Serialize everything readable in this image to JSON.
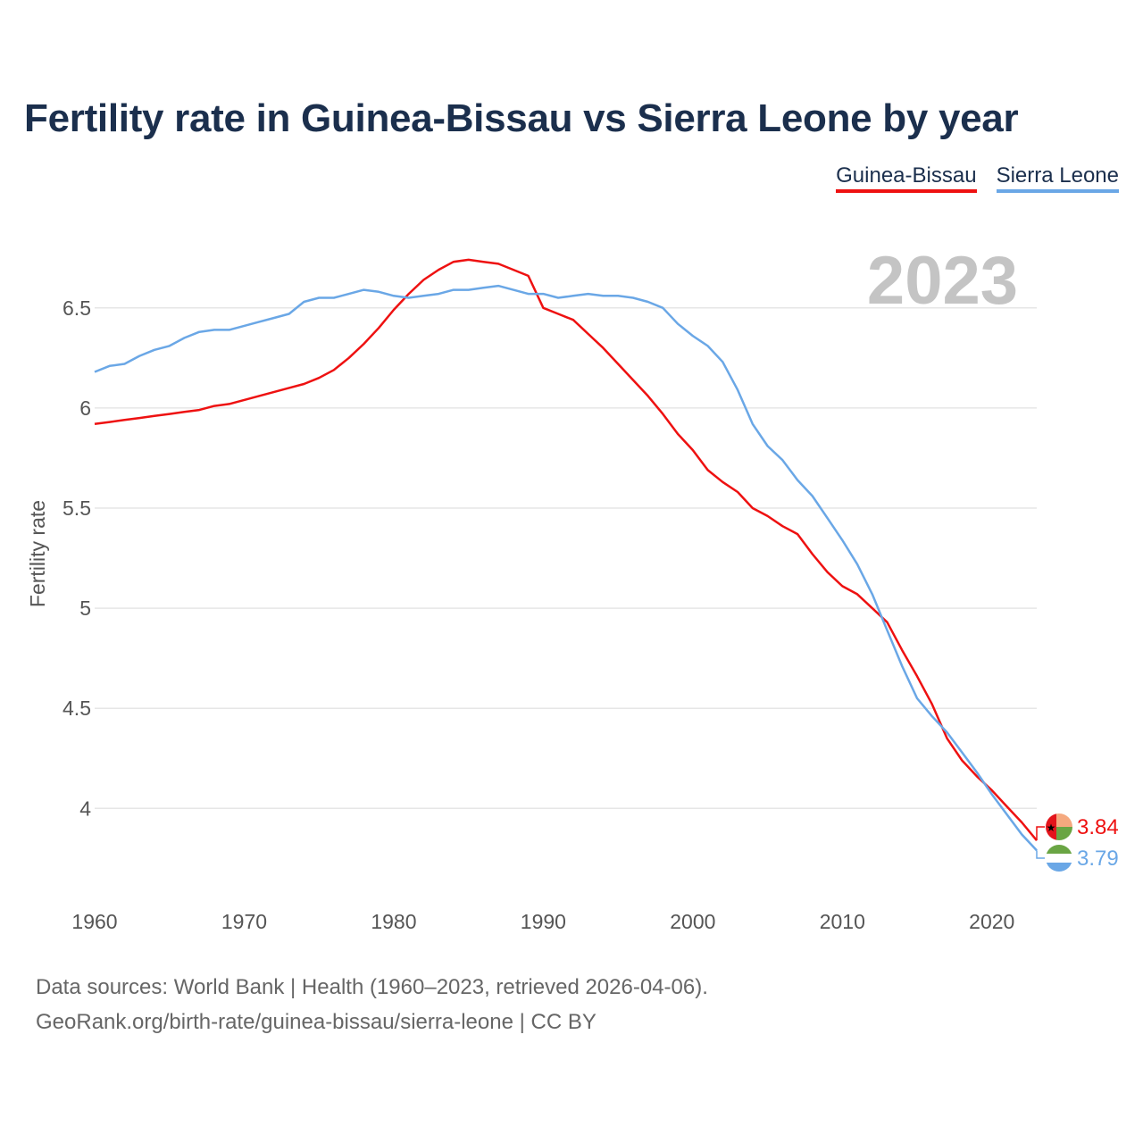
{
  "chart_data": {
    "type": "line",
    "title": "Fertility rate in Guinea-Bissau vs Sierra Leone by year",
    "year_overlay": "2023",
    "xlabel": "",
    "ylabel": "Fertility rate",
    "xlim": [
      1960,
      2023
    ],
    "ylim": [
      3.6,
      6.82
    ],
    "x_ticks": [
      1960,
      1970,
      1980,
      1990,
      2000,
      2010,
      2020
    ],
    "y_ticks": [
      4,
      4.5,
      5,
      5.5,
      6,
      6.5
    ],
    "y_tick_labels": [
      "4",
      "4.5",
      "5",
      "5.5",
      "6",
      "6.5"
    ],
    "grid": true,
    "legend_position": "top-right",
    "x": [
      1960,
      1961,
      1962,
      1963,
      1964,
      1965,
      1966,
      1967,
      1968,
      1969,
      1970,
      1971,
      1972,
      1973,
      1974,
      1975,
      1976,
      1977,
      1978,
      1979,
      1980,
      1981,
      1982,
      1983,
      1984,
      1985,
      1986,
      1987,
      1988,
      1989,
      1990,
      1991,
      1992,
      1993,
      1994,
      1995,
      1996,
      1997,
      1998,
      1999,
      2000,
      2001,
      2002,
      2003,
      2004,
      2005,
      2006,
      2007,
      2008,
      2009,
      2010,
      2011,
      2012,
      2013,
      2014,
      2015,
      2016,
      2017,
      2018,
      2019,
      2020,
      2021,
      2022,
      2023
    ],
    "series": [
      {
        "name": "Guinea-Bissau",
        "color": "#ee1111",
        "end_label": "3.84",
        "flag": "guinea-bissau-flag-icon",
        "values": [
          5.92,
          5.93,
          5.94,
          5.95,
          5.96,
          5.97,
          5.98,
          5.99,
          6.01,
          6.02,
          6.04,
          6.06,
          6.08,
          6.1,
          6.12,
          6.15,
          6.19,
          6.25,
          6.32,
          6.4,
          6.49,
          6.57,
          6.64,
          6.69,
          6.73,
          6.74,
          6.73,
          6.72,
          6.69,
          6.66,
          6.5,
          6.47,
          6.44,
          6.37,
          6.3,
          6.22,
          6.14,
          6.06,
          5.97,
          5.87,
          5.79,
          5.69,
          5.63,
          5.58,
          5.5,
          5.46,
          5.41,
          5.37,
          5.27,
          5.18,
          5.11,
          5.07,
          5.0,
          4.93,
          4.79,
          4.66,
          4.52,
          4.35,
          4.24,
          4.16,
          4.09,
          4.01,
          3.93,
          3.84
        ]
      },
      {
        "name": "Sierra Leone",
        "color": "#6aa7e6",
        "end_label": "3.79",
        "flag": "sierra-leone-flag-icon",
        "values": [
          6.18,
          6.21,
          6.22,
          6.26,
          6.29,
          6.31,
          6.35,
          6.38,
          6.39,
          6.39,
          6.41,
          6.43,
          6.45,
          6.47,
          6.53,
          6.55,
          6.55,
          6.57,
          6.59,
          6.58,
          6.56,
          6.55,
          6.56,
          6.57,
          6.59,
          6.59,
          6.6,
          6.61,
          6.59,
          6.57,
          6.57,
          6.55,
          6.56,
          6.57,
          6.56,
          6.56,
          6.55,
          6.53,
          6.5,
          6.42,
          6.36,
          6.31,
          6.23,
          6.09,
          5.92,
          5.81,
          5.74,
          5.64,
          5.56,
          5.45,
          5.34,
          5.22,
          5.07,
          4.89,
          4.71,
          4.55,
          4.46,
          4.38,
          4.28,
          4.18,
          4.07,
          3.97,
          3.87,
          3.79
        ]
      }
    ]
  },
  "footer": {
    "source_line": "Data sources: World Bank | Health (1960–2023, retrieved 2026-04-06).",
    "credit_line": "GeoRank.org/birth-rate/guinea-bissau/sierra-leone | CC BY"
  }
}
